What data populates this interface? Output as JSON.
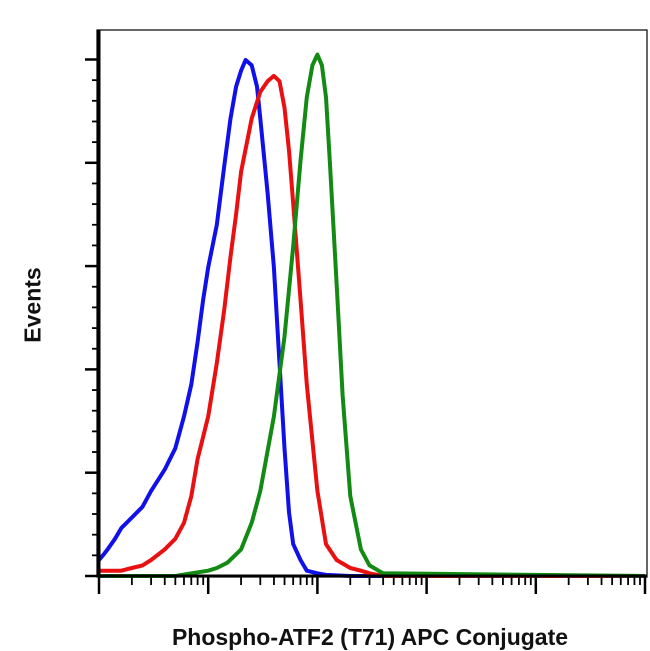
{
  "chart_data": {
    "type": "line",
    "title": "",
    "xlabel": "Phospho-ATF2 (T71) APC Conjugate",
    "ylabel": "Events",
    "x_scale": "log",
    "xlim": [
      1,
      100000
    ],
    "ylim": [
      0,
      1
    ],
    "grid": false,
    "legend": "none",
    "series": [
      {
        "color": "#1010e8",
        "x": [
          1,
          1.1,
          1.2,
          1.4,
          1.6,
          2,
          2.5,
          3,
          4,
          5,
          6,
          7,
          8,
          9,
          10,
          12,
          14,
          16,
          18,
          20,
          22,
          25,
          28,
          30,
          35,
          40,
          45,
          50,
          55,
          60,
          70,
          80,
          100,
          120,
          200,
          100000
        ],
        "values": [
          0.03,
          0.04,
          0.05,
          0.07,
          0.09,
          0.11,
          0.13,
          0.16,
          0.2,
          0.24,
          0.3,
          0.36,
          0.44,
          0.52,
          0.58,
          0.66,
          0.77,
          0.86,
          0.92,
          0.95,
          0.97,
          0.96,
          0.92,
          0.86,
          0.72,
          0.58,
          0.4,
          0.24,
          0.12,
          0.06,
          0.03,
          0.01,
          0.005,
          0.002,
          0,
          0
        ]
      },
      {
        "color": "#e81010",
        "x": [
          1,
          1.3,
          1.6,
          2,
          2.5,
          3,
          4,
          5,
          6,
          7,
          8,
          10,
          12,
          14,
          16,
          18,
          20,
          25,
          30,
          35,
          40,
          45,
          50,
          55,
          60,
          70,
          80,
          100,
          120,
          150,
          200,
          250,
          300,
          400,
          100000
        ],
        "values": [
          0.01,
          0.01,
          0.01,
          0.015,
          0.02,
          0.03,
          0.05,
          0.07,
          0.1,
          0.15,
          0.22,
          0.3,
          0.4,
          0.5,
          0.6,
          0.68,
          0.76,
          0.86,
          0.91,
          0.93,
          0.94,
          0.93,
          0.88,
          0.8,
          0.7,
          0.52,
          0.36,
          0.16,
          0.06,
          0.03,
          0.015,
          0.01,
          0.005,
          0,
          0
        ]
      },
      {
        "color": "#138a13",
        "x": [
          1,
          5,
          7,
          10,
          12,
          15,
          20,
          25,
          30,
          40,
          50,
          60,
          70,
          80,
          90,
          100,
          110,
          120,
          130,
          150,
          170,
          200,
          250,
          300,
          400,
          100000
        ],
        "values": [
          0,
          0,
          0.005,
          0.01,
          0.015,
          0.025,
          0.05,
          0.1,
          0.16,
          0.3,
          0.45,
          0.62,
          0.78,
          0.9,
          0.96,
          0.98,
          0.96,
          0.9,
          0.78,
          0.55,
          0.34,
          0.15,
          0.05,
          0.02,
          0.005,
          0
        ]
      }
    ]
  }
}
